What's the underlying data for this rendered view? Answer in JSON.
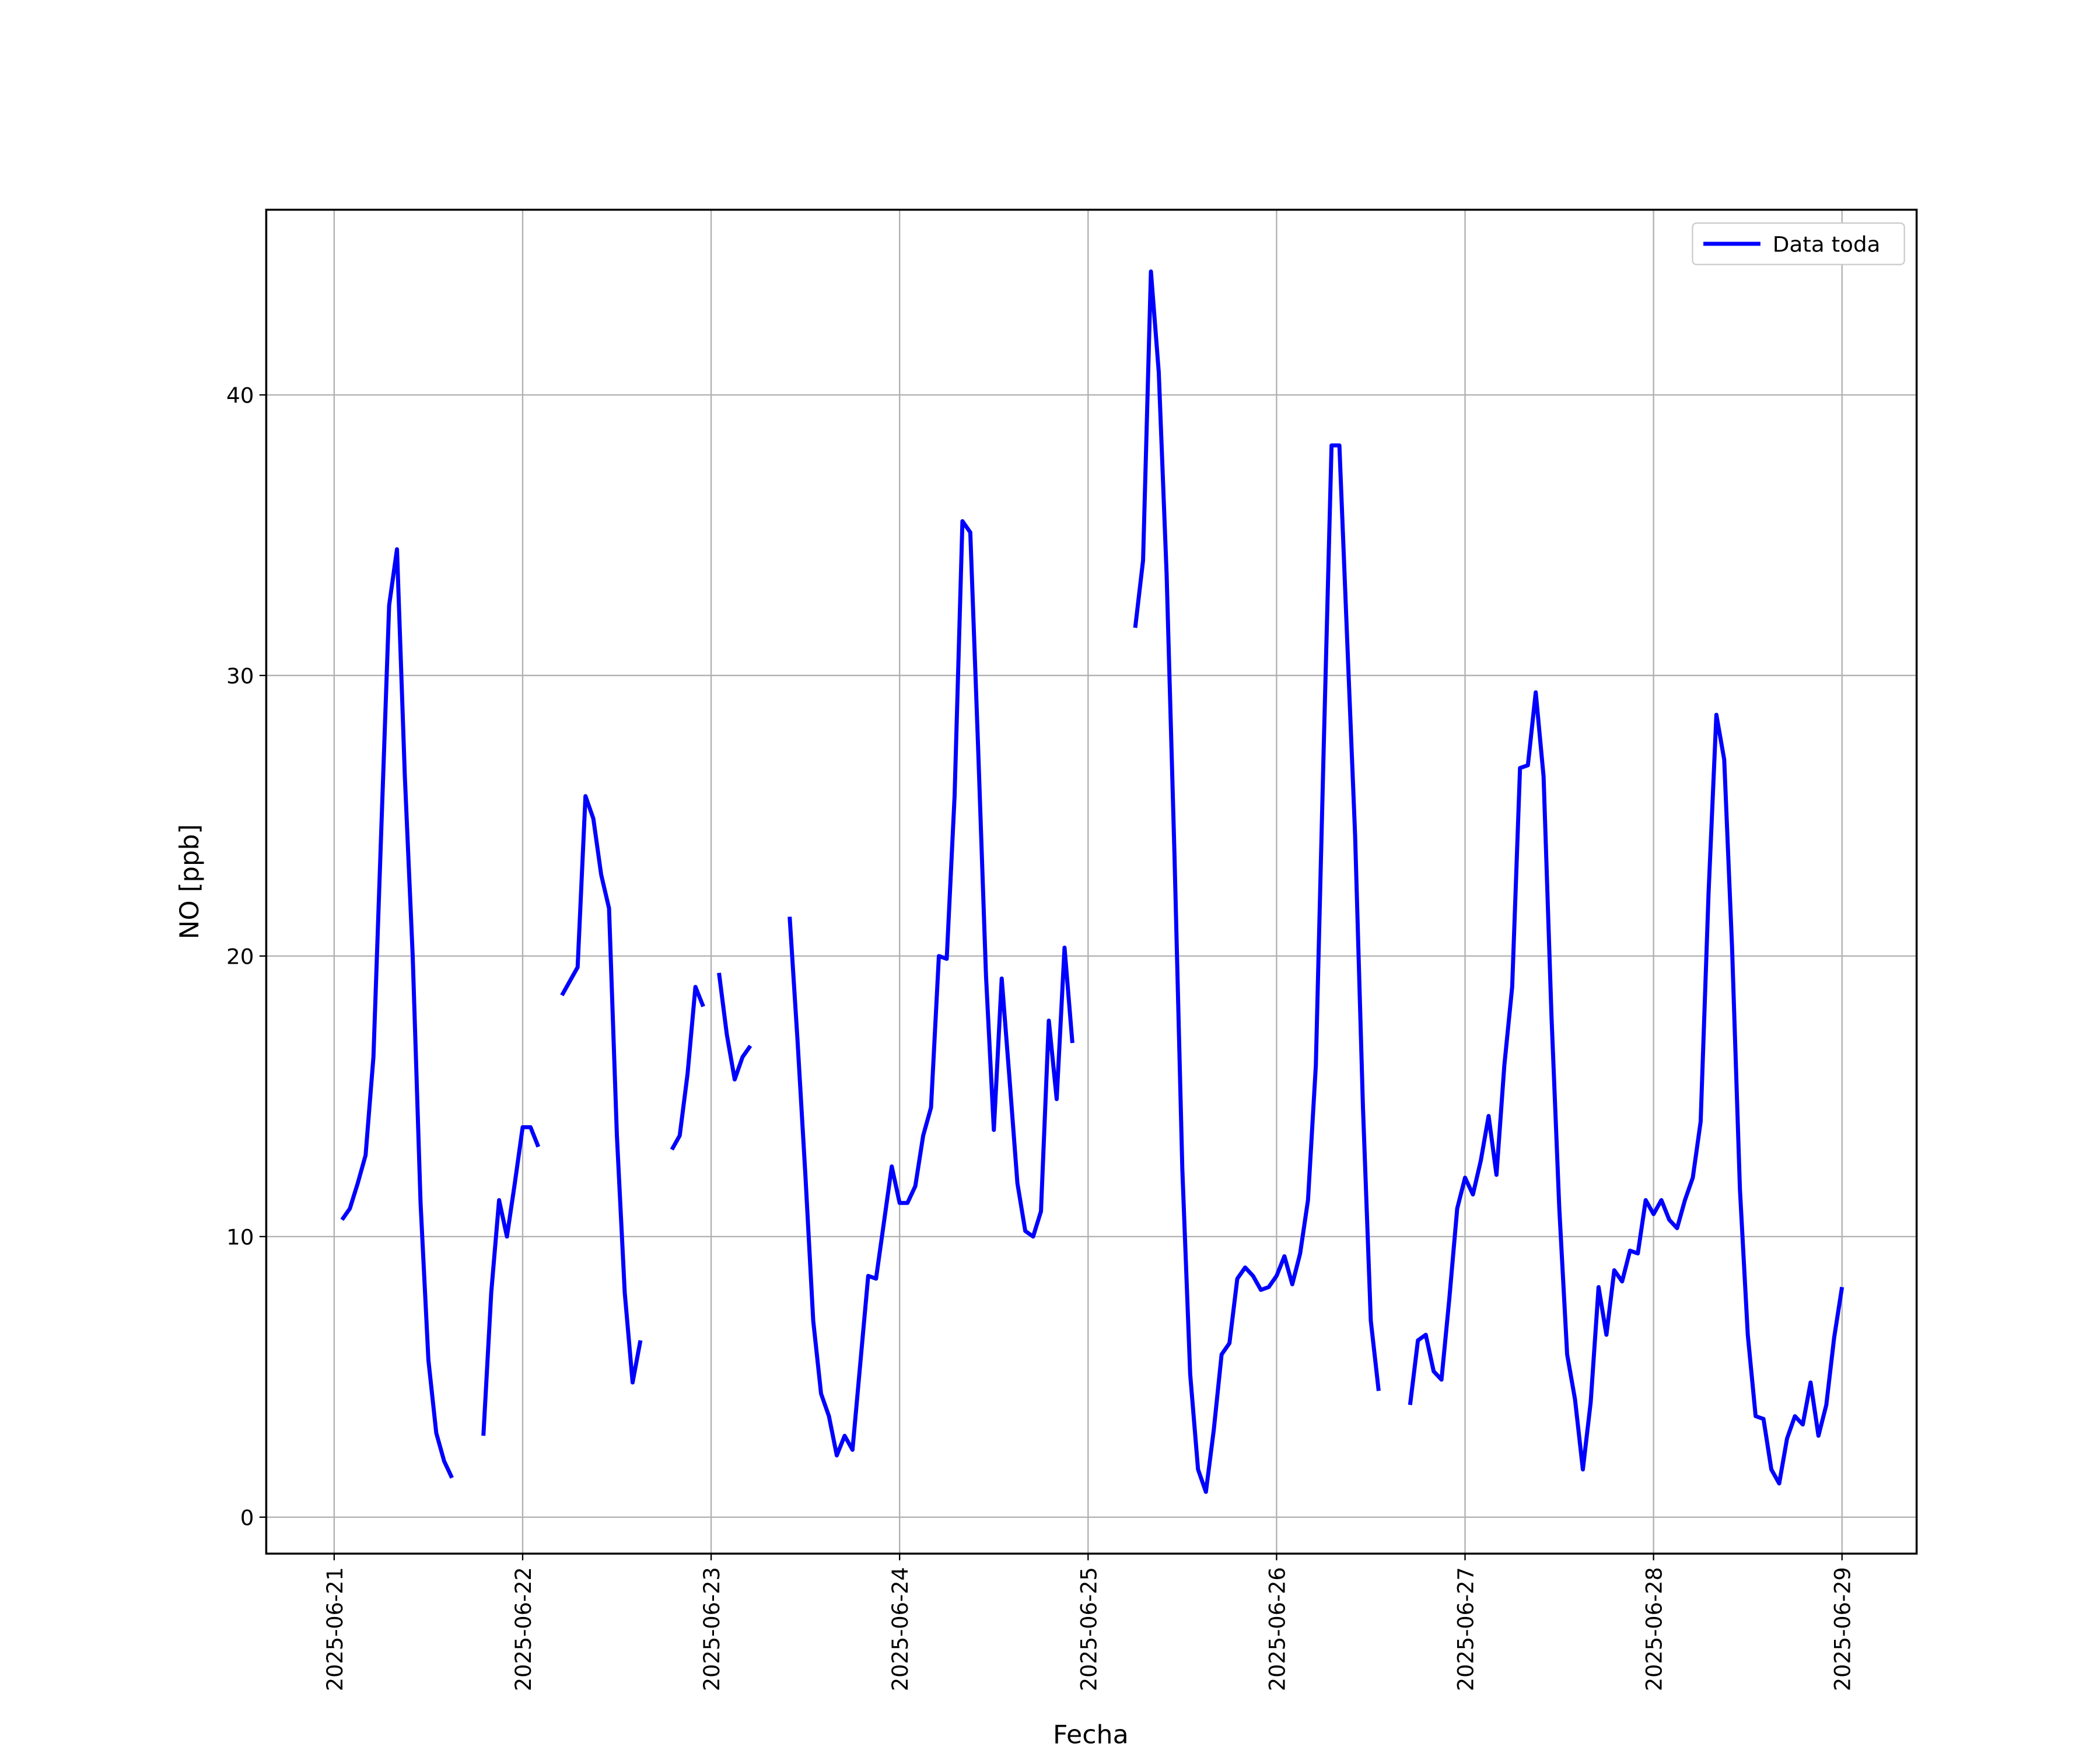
{
  "chart_data": {
    "type": "line",
    "xlabel": "Fecha",
    "ylabel": "NO [ppb]",
    "x": [
      "2025-06-21 01:00",
      "2025-06-21 02:00",
      "2025-06-21 03:00",
      "2025-06-21 04:00",
      "2025-06-21 05:00",
      "2025-06-21 06:00",
      "2025-06-21 07:00",
      "2025-06-21 08:00",
      "2025-06-21 09:00",
      "2025-06-21 10:00",
      "2025-06-21 11:00",
      "2025-06-21 12:00",
      "2025-06-21 13:00",
      "2025-06-21 14:00",
      "2025-06-21 15:00",
      "2025-06-21 16:00",
      "2025-06-21 19:00",
      "2025-06-21 20:00",
      "2025-06-21 21:00",
      "2025-06-21 22:00",
      "2025-06-21 23:00",
      "2025-06-22 00:00",
      "2025-06-22 01:00",
      "2025-06-22 02:00",
      "2025-06-22 03:00",
      "2025-06-22 05:00",
      "2025-06-22 06:00",
      "2025-06-22 07:00",
      "2025-06-22 08:00",
      "2025-06-22 09:00",
      "2025-06-22 10:00",
      "2025-06-22 11:00",
      "2025-06-22 12:00",
      "2025-06-22 13:00",
      "2025-06-22 14:00",
      "2025-06-22 15:00",
      "2025-06-22 16:00",
      "2025-06-22 19:00",
      "2025-06-22 20:00",
      "2025-06-22 21:00",
      "2025-06-22 22:00",
      "2025-06-22 23:00",
      "2025-06-23 00:00",
      "2025-06-23 01:00",
      "2025-06-23 02:00",
      "2025-06-23 03:00",
      "2025-06-23 04:00",
      "2025-06-23 05:00",
      "2025-06-23 06:00",
      "2025-06-23 10:00",
      "2025-06-23 11:00",
      "2025-06-23 12:00",
      "2025-06-23 13:00",
      "2025-06-23 14:00",
      "2025-06-23 15:00",
      "2025-06-23 16:00",
      "2025-06-23 17:00",
      "2025-06-23 18:00",
      "2025-06-23 19:00",
      "2025-06-23 20:00",
      "2025-06-23 21:00",
      "2025-06-23 22:00",
      "2025-06-23 23:00",
      "2025-06-24 00:00",
      "2025-06-24 01:00",
      "2025-06-24 02:00",
      "2025-06-24 03:00",
      "2025-06-24 04:00",
      "2025-06-24 05:00",
      "2025-06-24 06:00",
      "2025-06-24 07:00",
      "2025-06-24 08:00",
      "2025-06-24 09:00",
      "2025-06-24 10:00",
      "2025-06-24 11:00",
      "2025-06-24 12:00",
      "2025-06-24 13:00",
      "2025-06-24 14:00",
      "2025-06-24 15:00",
      "2025-06-24 16:00",
      "2025-06-24 17:00",
      "2025-06-24 18:00",
      "2025-06-24 19:00",
      "2025-06-24 20:00",
      "2025-06-24 21:00",
      "2025-06-24 22:00",
      "2025-06-24 23:00",
      "2025-06-25 06:00",
      "2025-06-25 07:00",
      "2025-06-25 08:00",
      "2025-06-25 09:00",
      "2025-06-25 10:00",
      "2025-06-25 11:00",
      "2025-06-25 12:00",
      "2025-06-25 13:00",
      "2025-06-25 14:00",
      "2025-06-25 15:00",
      "2025-06-25 16:00",
      "2025-06-25 17:00",
      "2025-06-25 18:00",
      "2025-06-25 19:00",
      "2025-06-25 20:00",
      "2025-06-25 21:00",
      "2025-06-25 22:00",
      "2025-06-25 23:00",
      "2025-06-26 00:00",
      "2025-06-26 01:00",
      "2025-06-26 02:00",
      "2025-06-26 03:00",
      "2025-06-26 04:00",
      "2025-06-26 05:00",
      "2025-06-26 06:00",
      "2025-06-26 07:00",
      "2025-06-26 08:00",
      "2025-06-26 09:00",
      "2025-06-26 10:00",
      "2025-06-26 11:00",
      "2025-06-26 12:00",
      "2025-06-26 13:00",
      "2025-06-26 14:00",
      "2025-06-26 17:00",
      "2025-06-26 18:00",
      "2025-06-26 19:00",
      "2025-06-26 20:00",
      "2025-06-26 21:00",
      "2025-06-26 22:00",
      "2025-06-26 23:00",
      "2025-06-27 00:00",
      "2025-06-27 01:00",
      "2025-06-27 02:00",
      "2025-06-27 03:00",
      "2025-06-27 04:00",
      "2025-06-27 05:00",
      "2025-06-27 06:00",
      "2025-06-27 07:00",
      "2025-06-27 08:00",
      "2025-06-27 09:00",
      "2025-06-27 10:00",
      "2025-06-27 11:00",
      "2025-06-27 12:00",
      "2025-06-27 13:00",
      "2025-06-27 14:00",
      "2025-06-27 15:00",
      "2025-06-27 16:00",
      "2025-06-27 17:00",
      "2025-06-27 18:00",
      "2025-06-27 19:00",
      "2025-06-27 20:00",
      "2025-06-27 21:00",
      "2025-06-27 22:00",
      "2025-06-27 23:00",
      "2025-06-28 00:00",
      "2025-06-28 01:00",
      "2025-06-28 02:00",
      "2025-06-28 03:00",
      "2025-06-28 04:00",
      "2025-06-28 05:00",
      "2025-06-28 06:00",
      "2025-06-28 07:00",
      "2025-06-28 08:00",
      "2025-06-28 09:00",
      "2025-06-28 10:00",
      "2025-06-28 11:00",
      "2025-06-28 12:00",
      "2025-06-28 13:00",
      "2025-06-28 14:00",
      "2025-06-28 15:00",
      "2025-06-28 16:00",
      "2025-06-28 17:00",
      "2025-06-28 18:00",
      "2025-06-28 19:00",
      "2025-06-28 20:00",
      "2025-06-28 21:00",
      "2025-06-28 22:00",
      "2025-06-28 23:00",
      "2025-06-29 00:00"
    ],
    "series": [
      {
        "name": "Data toda",
        "color": "#0000ff",
        "values": [
          10.6,
          11.0,
          11.9,
          12.9,
          16.4,
          24.5,
          32.5,
          34.5,
          26.4,
          20.0,
          11.2,
          5.6,
          3.0,
          2.0,
          1.4,
          null,
          2.9,
          8.0,
          11.3,
          10.0,
          11.9,
          13.9,
          13.9,
          13.2,
          null,
          18.6,
          19.1,
          19.6,
          25.7,
          24.9,
          22.9,
          21.7,
          13.6,
          8.0,
          4.8,
          6.3,
          null,
          13.1,
          13.6,
          15.8,
          18.9,
          18.2,
          null,
          19.4,
          17.2,
          15.6,
          16.4,
          16.8,
          null,
          21.4,
          17.0,
          12.2,
          7.0,
          4.4,
          3.6,
          2.2,
          2.9,
          2.4,
          5.5,
          8.6,
          8.5,
          10.5,
          12.5,
          11.2,
          11.2,
          11.8,
          13.6,
          14.6,
          20.0,
          19.9,
          25.7,
          35.5,
          35.1,
          27.4,
          19.3,
          13.8,
          19.2,
          15.6,
          11.9,
          10.2,
          10.0,
          10.9,
          17.7,
          14.9,
          20.3,
          16.9,
          null,
          31.7,
          34.1,
          44.4,
          40.8,
          33.6,
          23.6,
          12.4,
          5.1,
          1.7,
          0.9,
          3.1,
          5.8,
          6.2,
          8.5,
          8.9,
          8.6,
          8.1,
          8.2,
          8.6,
          9.3,
          8.3,
          9.4,
          11.3,
          16.1,
          27.4,
          38.2,
          38.2,
          31.2,
          24.3,
          14.6,
          7.0,
          4.5,
          null,
          4.0,
          6.3,
          6.5,
          5.2,
          4.9,
          7.8,
          11.0,
          12.1,
          11.5,
          12.7,
          14.3,
          12.2,
          16.1,
          18.9,
          26.7,
          26.8,
          29.4,
          26.4,
          17.9,
          11.0,
          5.8,
          4.2,
          1.7,
          4.1,
          8.2,
          6.5,
          8.8,
          8.4,
          9.5,
          9.4,
          11.3,
          10.8,
          11.3,
          10.6,
          10.3,
          11.3,
          12.1,
          14.1,
          22.2,
          28.6,
          27.0,
          20.3,
          11.7,
          6.5,
          3.6,
          3.5,
          1.7,
          1.2,
          2.8,
          3.6,
          3.3,
          4.8,
          2.9,
          4.0,
          6.4,
          8.2
        ]
      }
    ],
    "xlim": [
      "2025-06-20 15:21",
      "2025-06-29 09:30"
    ],
    "xticks": [
      "2025-06-21",
      "2025-06-22",
      "2025-06-23",
      "2025-06-24",
      "2025-06-25",
      "2025-06-26",
      "2025-06-27",
      "2025-06-28",
      "2025-06-29"
    ],
    "ylim": [
      -1.3,
      46.6
    ],
    "yticks": [
      0,
      10,
      20,
      30,
      40
    ],
    "grid": true,
    "legend": "upper right"
  }
}
